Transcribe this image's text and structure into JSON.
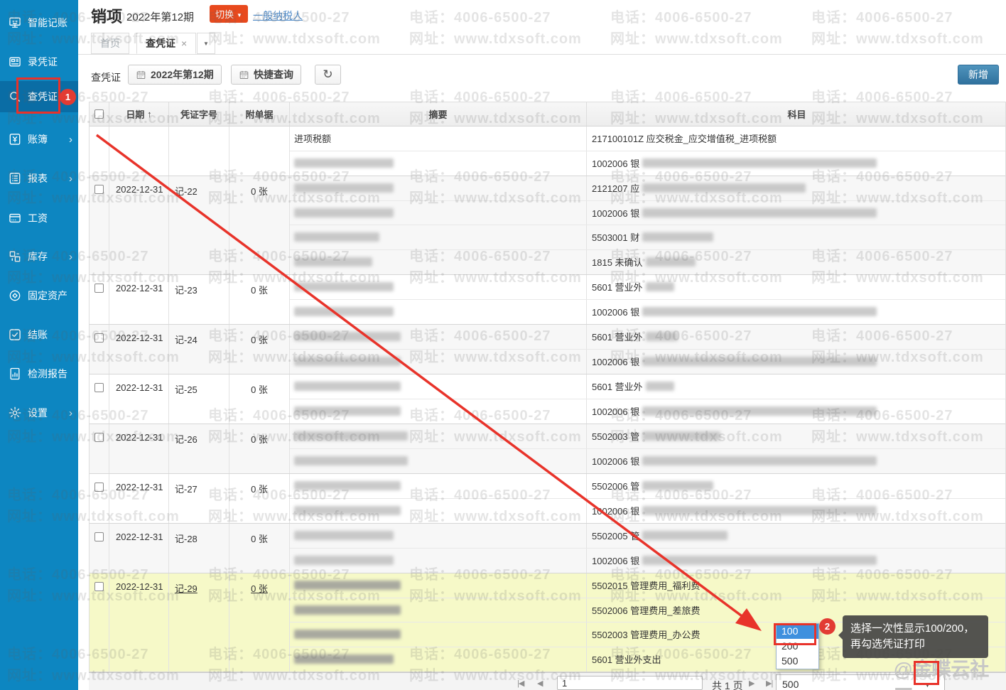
{
  "watermark": {
    "phone": "电话：4006-6500-27",
    "site": "网址：www.tdxsoft.com",
    "community": "@金蝶云社区"
  },
  "sidebar": {
    "items": [
      {
        "label": "智能记账",
        "icon": "smart-accounting-icon",
        "selected": false,
        "expandable": false
      },
      {
        "label": "录凭证",
        "icon": "voucher-entry-icon",
        "selected": false,
        "expandable": false
      },
      {
        "label": "查凭证",
        "icon": "voucher-query-icon",
        "selected": true,
        "expandable": false
      },
      {
        "label": "账簿",
        "icon": "ledger-icon",
        "selected": false,
        "expandable": true
      },
      {
        "label": "报表",
        "icon": "report-icon",
        "selected": false,
        "expandable": true
      },
      {
        "label": "工资",
        "icon": "payroll-icon",
        "selected": false,
        "expandable": false
      },
      {
        "label": "库存",
        "icon": "inventory-icon",
        "selected": false,
        "expandable": true
      },
      {
        "label": "固定资产",
        "icon": "fixed-assets-icon",
        "selected": false,
        "expandable": false
      },
      {
        "label": "结账",
        "icon": "closing-icon",
        "selected": false,
        "expandable": false
      },
      {
        "label": "检测报告",
        "icon": "inspection-report-icon",
        "selected": false,
        "expandable": false
      },
      {
        "label": "设置",
        "icon": "settings-icon",
        "selected": false,
        "expandable": true
      }
    ]
  },
  "header": {
    "title": "销项",
    "period": "2022年第12期",
    "switch_button": "切换",
    "taxpayer_link": "一般纳税人"
  },
  "tabs": {
    "home": "首页",
    "active_tab": "查凭证",
    "close_glyph": "×",
    "caret_glyph": "▼"
  },
  "toolbar": {
    "page_label": "查凭证",
    "period_button": "2022年第12期",
    "quick_query_button": "快捷查询",
    "refresh_glyph": "↻",
    "add_button": "新增"
  },
  "table": {
    "headers": {
      "date": "日期",
      "sort_arrow": "↑",
      "voucher_no": "凭证字号",
      "attachments": "附单据",
      "summary": "摘要",
      "subject": "科目"
    },
    "groups": [
      {
        "date": "",
        "voucher": "",
        "attach": "",
        "highlighted": false,
        "rows": [
          {
            "summary": "进项税额",
            "summary_blur": 0,
            "subject": "217100101Z 应交税金_应交增值税_进项税额",
            "subject_blur": 0
          },
          {
            "summary": "",
            "summary_blur": 140,
            "subject": "1002006 银",
            "subject_blur": 330
          }
        ]
      },
      {
        "date": "2022-12-31",
        "voucher": "记-22",
        "attach": "0 张",
        "highlighted": false,
        "rows": [
          {
            "summary": "",
            "summary_blur": 140,
            "subject": "2121207 应",
            "subject_blur": 230
          },
          {
            "summary": "",
            "summary_blur": 140,
            "subject": "1002006 银",
            "subject_blur": 330
          },
          {
            "summary": "",
            "summary_blur": 120,
            "subject": "5503001 财",
            "subject_blur": 100
          },
          {
            "summary": "",
            "summary_blur": 110,
            "subject": "1815 未确认",
            "subject_blur": 70
          }
        ]
      },
      {
        "date": "2022-12-31",
        "voucher": "记-23",
        "attach": "0 张",
        "highlighted": false,
        "rows": [
          {
            "summary": "",
            "summary_blur": 140,
            "subject": "5601 营业外",
            "subject_blur": 40
          },
          {
            "summary": "",
            "summary_blur": 140,
            "subject": "1002006 银",
            "subject_blur": 330
          }
        ]
      },
      {
        "date": "2022-12-31",
        "voucher": "记-24",
        "attach": "0 张",
        "highlighted": false,
        "rows": [
          {
            "summary": "",
            "summary_blur": 150,
            "subject": "5601 营业外",
            "subject_blur": 45
          },
          {
            "summary": "",
            "summary_blur": 150,
            "subject": "1002006 银",
            "subject_blur": 330
          }
        ]
      },
      {
        "date": "2022-12-31",
        "voucher": "记-25",
        "attach": "0 张",
        "highlighted": false,
        "rows": [
          {
            "summary": "",
            "summary_blur": 150,
            "subject": "5601 营业外",
            "subject_blur": 40
          },
          {
            "summary": "",
            "summary_blur": 150,
            "subject": "1002006 银",
            "subject_blur": 330
          }
        ]
      },
      {
        "date": "2022-12-31",
        "voucher": "记-26",
        "attach": "0 张",
        "highlighted": false,
        "rows": [
          {
            "summary": "",
            "summary_blur": 160,
            "subject": "5502003 管",
            "subject_blur": 110
          },
          {
            "summary": "",
            "summary_blur": 160,
            "subject": "1002006 银",
            "subject_blur": 330
          }
        ]
      },
      {
        "date": "2022-12-31",
        "voucher": "记-27",
        "attach": "0 张",
        "highlighted": false,
        "rows": [
          {
            "summary": "",
            "summary_blur": 150,
            "subject": "5502006 管",
            "subject_blur": 100
          },
          {
            "summary": "",
            "summary_blur": 150,
            "subject": "1002006 银",
            "subject_blur": 330
          }
        ]
      },
      {
        "date": "2022-12-31",
        "voucher": "记-28",
        "attach": "0 张",
        "highlighted": false,
        "rows": [
          {
            "summary": "",
            "summary_blur": 140,
            "subject": "5502005 管",
            "subject_blur": 120
          },
          {
            "summary": "",
            "summary_blur": 140,
            "subject": "1002006 银",
            "subject_blur": 330
          }
        ]
      },
      {
        "date": "2022-12-31",
        "voucher": "记-29",
        "attach": "0 张",
        "highlighted": true,
        "rows": [
          {
            "summary": "",
            "summary_blur": 150,
            "subject": "5502015 管理费用_福利费",
            "subject_blur": 0
          },
          {
            "summary": "",
            "summary_blur": 150,
            "subject": "5502006 管理费用_差旅费",
            "subject_blur": 0
          },
          {
            "summary": "",
            "summary_blur": 150,
            "subject": "5502003 管理费用_办公费",
            "subject_blur": 0
          },
          {
            "summary": "",
            "summary_blur": 140,
            "subject": "5601 营业外支出",
            "subject_blur": 0
          }
        ]
      }
    ]
  },
  "pagination": {
    "first_glyph": "|◀",
    "prev_glyph": "◀",
    "page_value": "1",
    "total_pages_label": "共 1 页",
    "next_glyph": "▶",
    "last_glyph": "▶|",
    "page_size_value": "500",
    "caret_glyph": "▼"
  },
  "page_size_menu": {
    "options": [
      {
        "label": "100",
        "selected": true
      },
      {
        "label": "200",
        "selected": false
      },
      {
        "label": "500",
        "selected": false
      }
    ]
  },
  "annotations": {
    "step1_badge": "1",
    "step2_badge": "2",
    "tooltip_line1": "选择一次性显示100/200，",
    "tooltip_line2": "再勾选凭证打印"
  }
}
